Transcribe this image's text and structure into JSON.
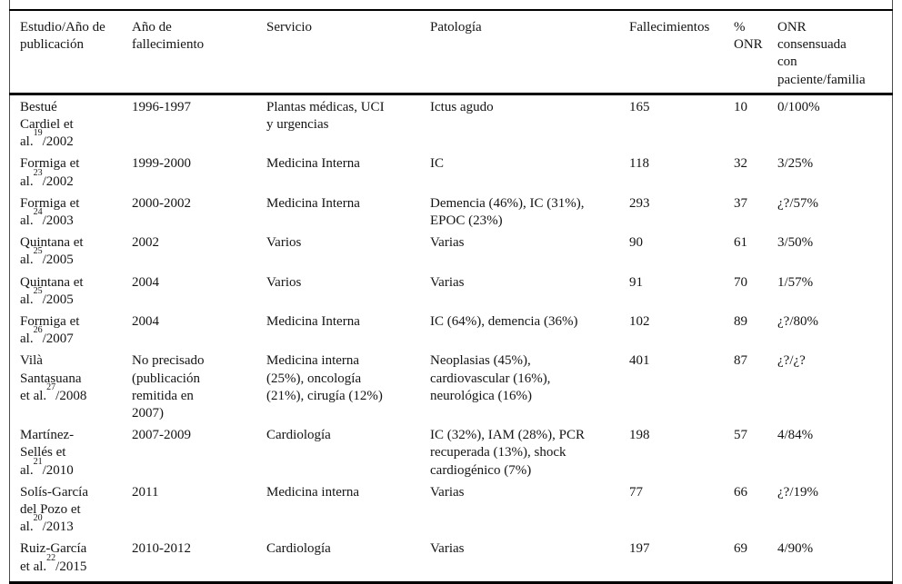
{
  "page": {
    "background": "#ffffff",
    "text_color": "#141414",
    "rule_color": "#000000",
    "side_rule_color": "#4d4d4d"
  },
  "table": {
    "headers": [
      "Estudio/Año de\npublicación",
      "Año de\nfallecimiento",
      "Servicio",
      "Patología",
      "Fallecimientos",
      "%\nONR",
      "ONR\nconsensuada\ncon\npaciente/familia"
    ],
    "rows": [
      {
        "study_pre": "Bestué\nCardiel et\nal.",
        "study_ref": "19",
        "study_post": "/2002",
        "death_years": "1996-1997",
        "service": "Plantas médicas, UCI\ny urgencias",
        "pathology": "Ictus agudo",
        "deaths": "165",
        "onr_pct": "10",
        "onr_consent": "0/100%"
      },
      {
        "study_pre": "Formiga et\nal.",
        "study_ref": "23",
        "study_post": "/2002",
        "death_years": "1999-2000",
        "service": "Medicina Interna",
        "pathology": "IC",
        "deaths": "118",
        "onr_pct": "32",
        "onr_consent": "3/25%"
      },
      {
        "study_pre": "Formiga et\nal.",
        "study_ref": "24",
        "study_post": "/2003",
        "death_years": "2000-2002",
        "service": "Medicina Interna",
        "pathology": "Demencia (46%), IC (31%),\nEPOC (23%)",
        "deaths": "293",
        "onr_pct": "37",
        "onr_consent": "¿?/57%"
      },
      {
        "study_pre": "Quintana et\nal.",
        "study_ref": "25",
        "study_post": "/2005",
        "death_years": "2002",
        "service": "Varios",
        "pathology": "Varias",
        "deaths": "90",
        "onr_pct": "61",
        "onr_consent": "3/50%"
      },
      {
        "study_pre": "Quintana et\nal.",
        "study_ref": "25",
        "study_post": "/2005",
        "death_years": "2004",
        "service": "Varios",
        "pathology": "Varias",
        "deaths": "91",
        "onr_pct": "70",
        "onr_consent": "1/57%"
      },
      {
        "study_pre": "Formiga et\nal.",
        "study_ref": "26",
        "study_post": "/2007",
        "death_years": "2004",
        "service": "Medicina Interna",
        "pathology": "IC (64%), demencia (36%)",
        "deaths": "102",
        "onr_pct": "89",
        "onr_consent": "¿?/80%"
      },
      {
        "study_pre": "Vilà\nSantasuana\net al.",
        "study_ref": "27",
        "study_post": "/2008",
        "death_years": "No precisado\n(publicación\nremitida en\n2007)",
        "service": "Medicina interna\n(25%), oncología\n(21%), cirugía (12%)",
        "pathology": "Neoplasias (45%),\ncardiovascular (16%),\nneurológica (16%)",
        "deaths": "401",
        "onr_pct": "87",
        "onr_consent": "¿?/¿?"
      },
      {
        "study_pre": "Martínez-\nSellés et\nal.",
        "study_ref": "21",
        "study_post": "/2010",
        "death_years": "2007-2009",
        "service": "Cardiología",
        "pathology": "IC (32%), IAM (28%), PCR\nrecuperada (13%), shock\ncardiogénico (7%)",
        "deaths": "198",
        "onr_pct": "57",
        "onr_consent": "4/84%"
      },
      {
        "study_pre": "Solís-García\ndel Pozo et\nal.",
        "study_ref": "20",
        "study_post": "/2013",
        "death_years": "2011",
        "service": "Medicina interna",
        "pathology": "Varias",
        "deaths": "77",
        "onr_pct": "66",
        "onr_consent": "¿?/19%"
      },
      {
        "study_pre": "Ruiz-García\net al.",
        "study_ref": "22",
        "study_post": "/2015",
        "death_years": "2010-2012",
        "service": "Cardiología",
        "pathology": "Varias",
        "deaths": "197",
        "onr_pct": "69",
        "onr_consent": "4/90%"
      }
    ]
  }
}
